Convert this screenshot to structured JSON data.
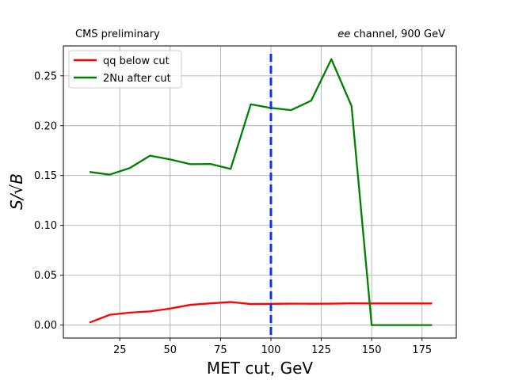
{
  "header": {
    "left": "CMS preliminary",
    "right_italic": "ee",
    "right_rest": " channel, 900 GeV"
  },
  "chart_data": {
    "type": "line",
    "xlabel": "MET cut, GeV",
    "ylabel": "S/√B",
    "xlim": [
      -3,
      192
    ],
    "ylim": [
      -0.013,
      0.28
    ],
    "x_ticks": [
      25,
      50,
      75,
      100,
      125,
      150,
      175
    ],
    "y_ticks": [
      0.0,
      0.05,
      0.1,
      0.15,
      0.2,
      0.25
    ],
    "x_tick_labels": [
      "25",
      "50",
      "75",
      "100",
      "125",
      "150",
      "175"
    ],
    "y_tick_labels": [
      "0.00",
      "0.05",
      "0.10",
      "0.15",
      "0.20",
      "0.25"
    ],
    "grid": true,
    "legend_position": "top-left",
    "series": [
      {
        "name": "qq below cut",
        "color": "#ff0000",
        "x": [
          10,
          20,
          30,
          40,
          50,
          60,
          70,
          80,
          90,
          100,
          110,
          120,
          130,
          140,
          150,
          160,
          170,
          180
        ],
        "values": [
          0.0025,
          0.0103,
          0.0125,
          0.0137,
          0.0166,
          0.0203,
          0.0218,
          0.0231,
          0.0211,
          0.0213,
          0.0215,
          0.0214,
          0.0215,
          0.0218,
          0.0217,
          0.0217,
          0.0217,
          0.0217
        ]
      },
      {
        "name": "2Nu after cut",
        "color": "#008000",
        "x": [
          10,
          20,
          30,
          40,
          50,
          60,
          70,
          80,
          90,
          100,
          110,
          120,
          130,
          140,
          150,
          160,
          170,
          180
        ],
        "values": [
          0.1536,
          0.1509,
          0.1575,
          0.1699,
          0.1662,
          0.1614,
          0.1616,
          0.1566,
          0.2214,
          0.2178,
          0.2156,
          0.2251,
          0.2667,
          0.2198,
          0.0,
          0.0,
          0.0,
          0.0
        ]
      }
    ],
    "vertical_line": {
      "x": 100,
      "color": "#1133ee",
      "style": "dashed"
    }
  }
}
